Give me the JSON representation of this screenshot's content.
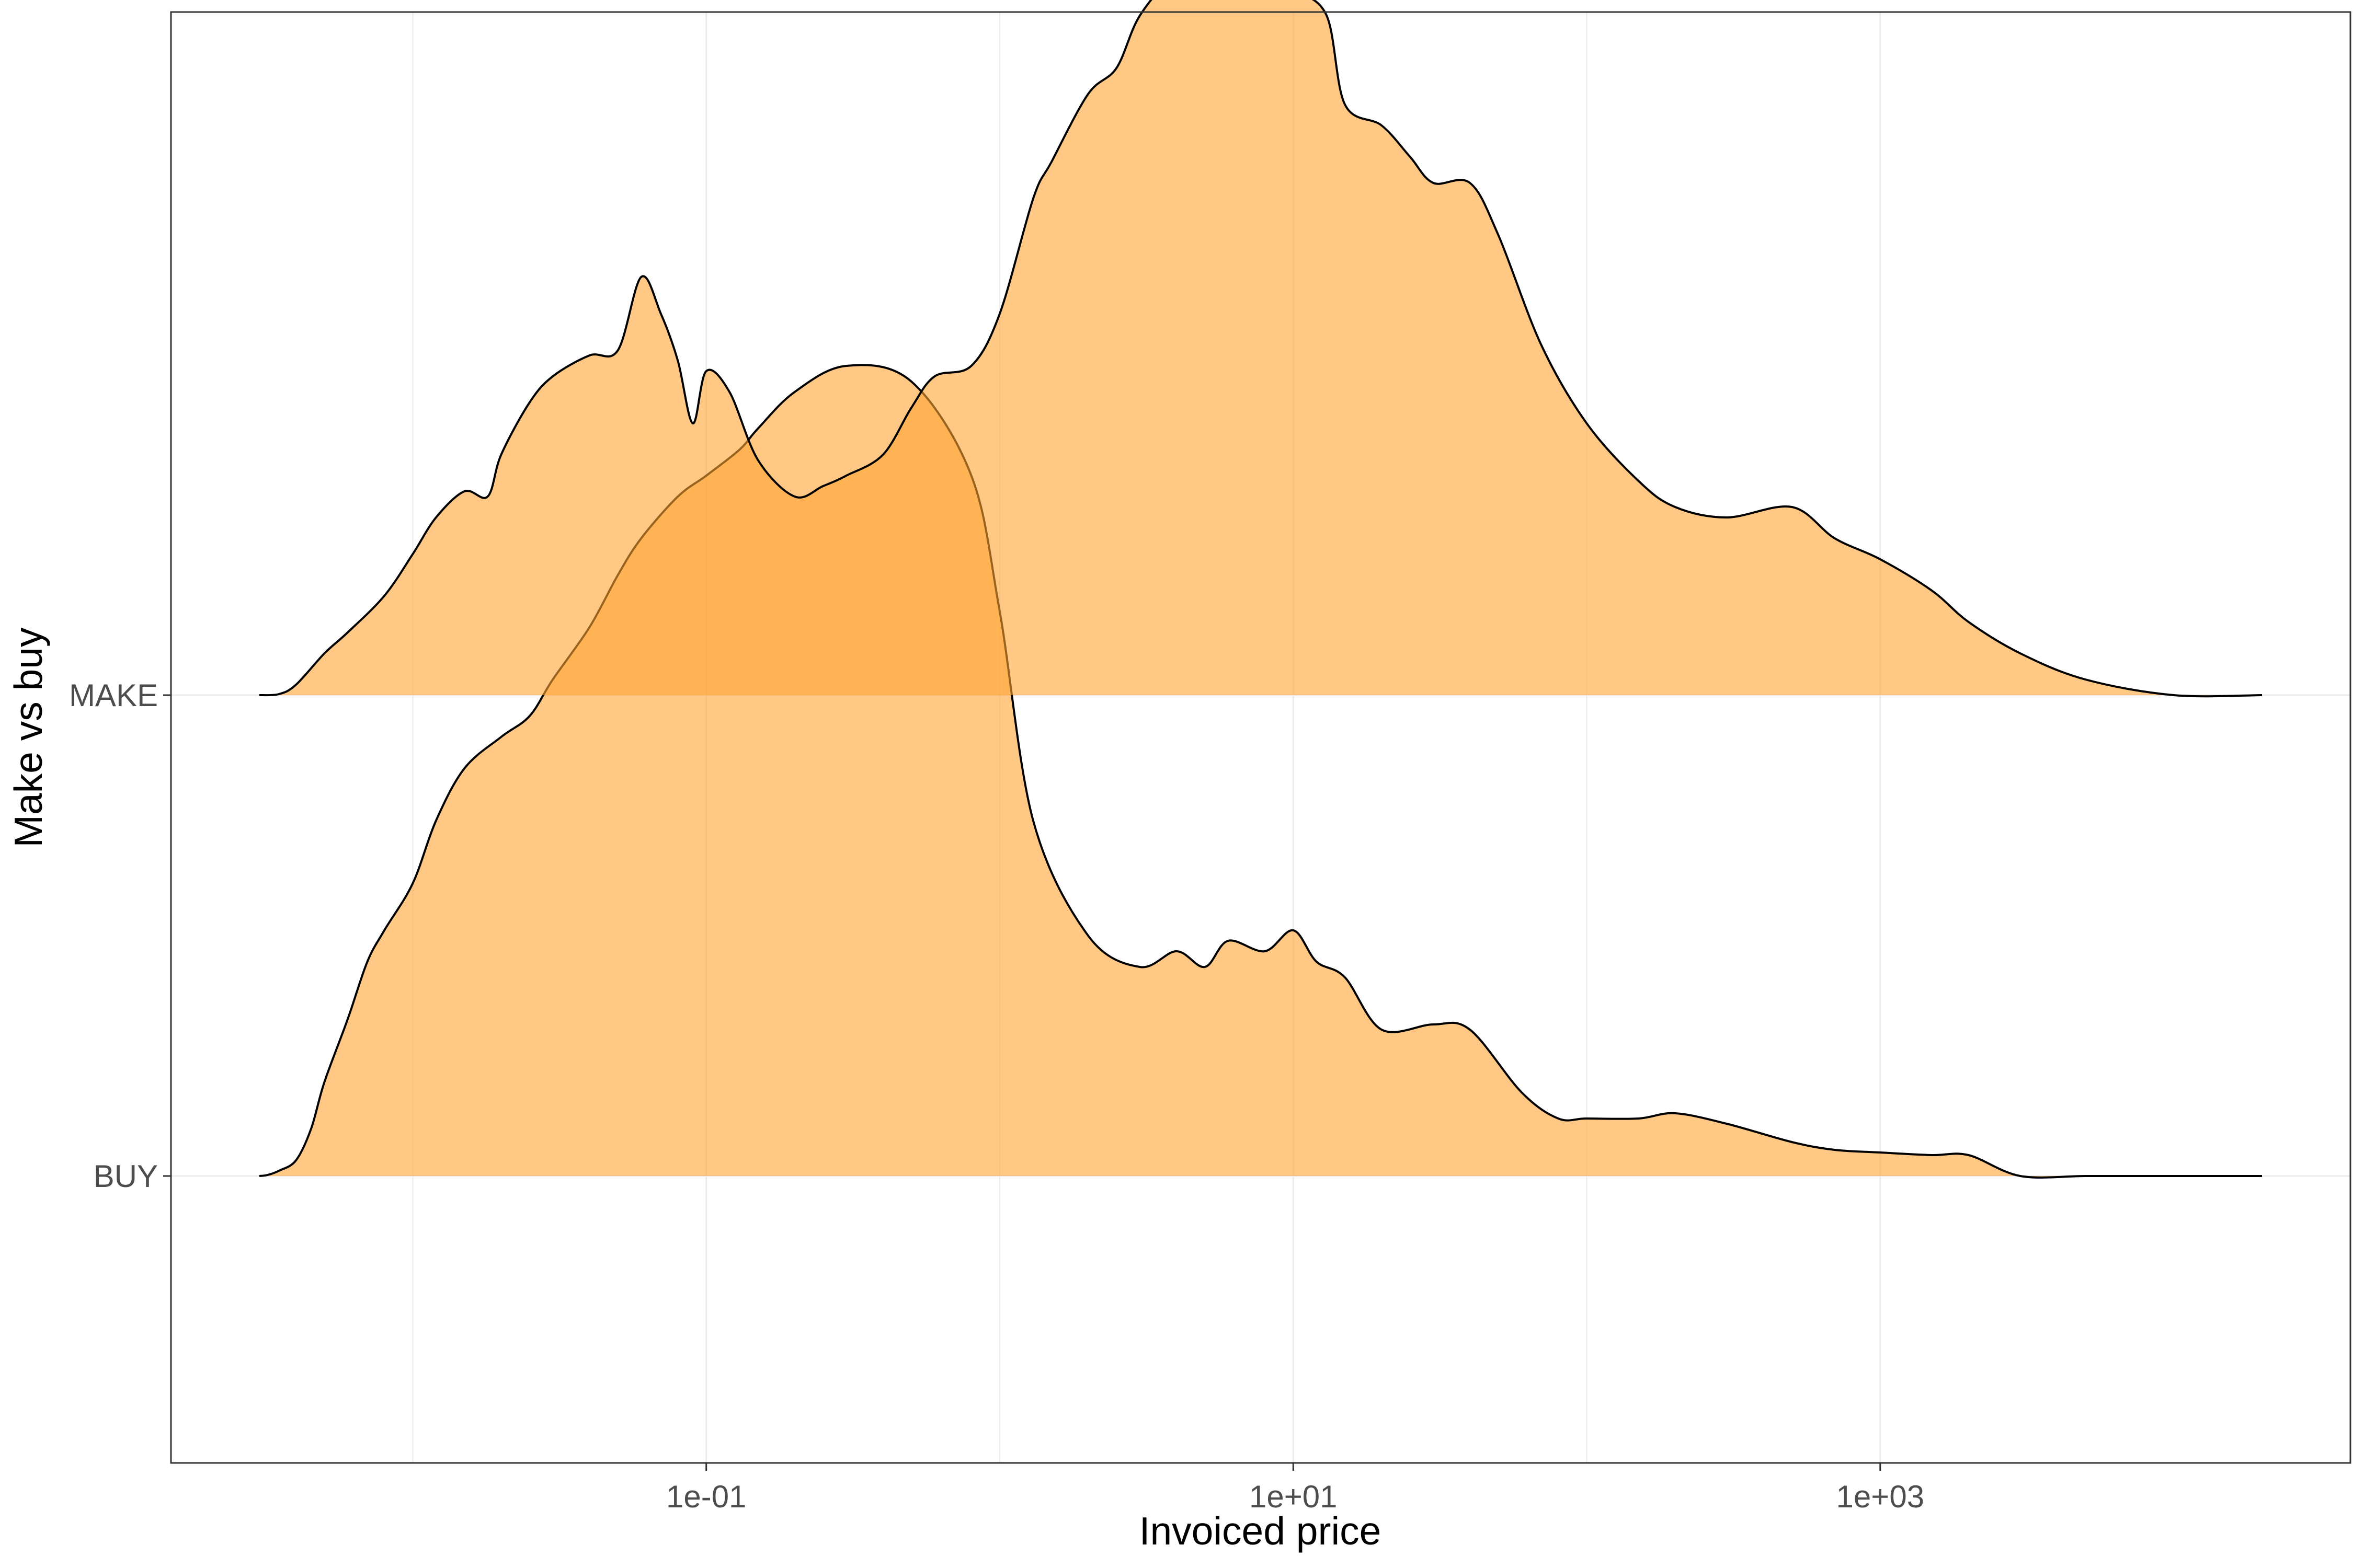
{
  "chart_data": {
    "type": "area",
    "subtype": "ridgeline-density",
    "xlabel": "Invoiced price",
    "ylabel": "Make vs buy",
    "x_scale": "log10",
    "x_ticks": [
      {
        "value": 0.1,
        "label": "1e-01"
      },
      {
        "value": 10,
        "label": "1e+01"
      },
      {
        "value": 1000,
        "label": "1e+03"
      }
    ],
    "x_minor_gridlines": [
      0.01,
      1,
      100
    ],
    "xlim": [
      0.0015,
      40000
    ],
    "categories": [
      "BUY",
      "MAKE"
    ],
    "grid": true,
    "fill_color": "#FFA533",
    "fill_opacity": 0.6,
    "outline_color": "#000000",
    "series": [
      {
        "name": "BUY",
        "baseline": 0,
        "x": [
          0.003,
          0.0032,
          0.0035,
          0.004,
          0.0045,
          0.005,
          0.006,
          0.007,
          0.008,
          0.01,
          0.012,
          0.015,
          0.02,
          0.025,
          0.03,
          0.04,
          0.05,
          0.06,
          0.08,
          0.1,
          0.13,
          0.15,
          0.2,
          0.3,
          0.5,
          0.8,
          1,
          1.3,
          2,
          3,
          4,
          5,
          6,
          8,
          10,
          12,
          15,
          20,
          30,
          40,
          60,
          80,
          100,
          150,
          200,
          300,
          500,
          700,
          1000,
          1500,
          2000,
          3000,
          5000,
          8000,
          10000,
          20000
        ],
        "y": [
          0.0,
          0.002,
          0.01,
          0.03,
          0.09,
          0.18,
          0.3,
          0.41,
          0.47,
          0.56,
          0.68,
          0.78,
          0.84,
          0.88,
          0.95,
          1.05,
          1.15,
          1.22,
          1.3,
          1.34,
          1.39,
          1.43,
          1.5,
          1.55,
          1.52,
          1.34,
          1.08,
          0.68,
          0.46,
          0.4,
          0.43,
          0.4,
          0.45,
          0.43,
          0.47,
          0.41,
          0.38,
          0.28,
          0.29,
          0.28,
          0.16,
          0.11,
          0.11,
          0.11,
          0.12,
          0.1,
          0.065,
          0.05,
          0.045,
          0.04,
          0.04,
          0.0,
          0.0,
          0.0,
          0.0,
          0.0
        ]
      },
      {
        "name": "MAKE",
        "baseline": 1,
        "x": [
          0.003,
          0.0035,
          0.004,
          0.005,
          0.006,
          0.008,
          0.01,
          0.012,
          0.015,
          0.018,
          0.02,
          0.025,
          0.03,
          0.04,
          0.05,
          0.06,
          0.07,
          0.08,
          0.09,
          0.1,
          0.12,
          0.15,
          0.2,
          0.25,
          0.3,
          0.4,
          0.5,
          0.6,
          0.8,
          1,
          1.3,
          1.5,
          2,
          2.5,
          3,
          4,
          5,
          6,
          8,
          10,
          13,
          15,
          20,
          25,
          30,
          40,
          50,
          70,
          100,
          150,
          200,
          300,
          500,
          700,
          1000,
          1500,
          2000,
          3000,
          5000,
          10000,
          20000
        ],
        "y": [
          0.0,
          0.002,
          0.02,
          0.08,
          0.12,
          0.19,
          0.27,
          0.34,
          0.39,
          0.38,
          0.46,
          0.56,
          0.61,
          0.65,
          0.66,
          0.8,
          0.73,
          0.64,
          0.52,
          0.62,
          0.58,
          0.45,
          0.38,
          0.4,
          0.42,
          0.46,
          0.55,
          0.61,
          0.63,
          0.73,
          0.95,
          1.02,
          1.15,
          1.2,
          1.3,
          1.38,
          1.39,
          1.38,
          1.38,
          1.35,
          1.3,
          1.13,
          1.09,
          1.03,
          0.98,
          0.98,
          0.88,
          0.67,
          0.52,
          0.41,
          0.36,
          0.34,
          0.36,
          0.3,
          0.26,
          0.2,
          0.14,
          0.08,
          0.03,
          0.0,
          0.0
        ]
      }
    ]
  }
}
